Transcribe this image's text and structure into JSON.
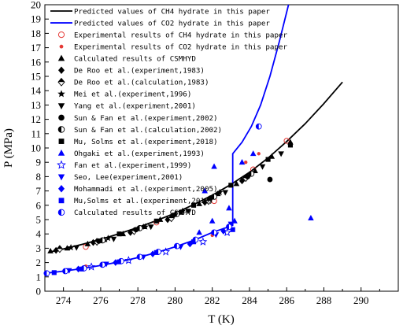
{
  "chart_data": {
    "type": "scatter",
    "xlabel": "T (K)",
    "ylabel": "P (MPa)",
    "xlim": [
      273,
      292
    ],
    "ylim": [
      0,
      20
    ],
    "x_ticks": [
      "274",
      "276",
      "278",
      "280",
      "282",
      "284",
      "286",
      "288",
      "290"
    ],
    "y_ticks": [
      "0",
      "1",
      "2",
      "3",
      "4",
      "5",
      "6",
      "7",
      "8",
      "9",
      "10",
      "11",
      "12",
      "13",
      "14",
      "15",
      "16",
      "17",
      "18",
      "19",
      "20"
    ],
    "grid": false,
    "legend_position": "top-left",
    "colors": {
      "ch4": "#000000",
      "co2": "#0000ff",
      "exp_red": "#e53935"
    },
    "series": [
      {
        "name": "Predicted values of CH$_4$ hydrate in this paper",
        "label": "Predicted values of CH4 hydrate in this paper",
        "marker": "line",
        "color": "#000000",
        "x": [
          273.2,
          274,
          275,
          276,
          277,
          278,
          279,
          280,
          281,
          282,
          283,
          284,
          285,
          286,
          287,
          288,
          289
        ],
        "y": [
          2.72,
          2.95,
          3.27,
          3.62,
          4.02,
          4.45,
          4.93,
          5.45,
          6.05,
          6.7,
          7.45,
          8.3,
          9.3,
          10.45,
          11.7,
          13.1,
          14.6
        ]
      },
      {
        "name": "Predicted values of CO$_2$ hydrate in this paper",
        "label": "Predicted values of CO2 hydrate in this paper",
        "marker": "line",
        "color": "#0000ff",
        "x": [
          273.2,
          274,
          275,
          276,
          277,
          278,
          279,
          280,
          281,
          282,
          283,
          283.1,
          283.1,
          283.6,
          284.1,
          284.6,
          285.1,
          285.6,
          286.1
        ],
        "y": [
          1.28,
          1.4,
          1.58,
          1.8,
          2.05,
          2.35,
          2.7,
          3.1,
          3.55,
          4.1,
          4.55,
          4.6,
          9.6,
          10.4,
          11.5,
          13.0,
          15.0,
          17.4,
          20.0
        ]
      },
      {
        "name": "Experimental results of CH$_4$ hydrate in this paper",
        "label": "Experimental results of CH4 hydrate in this paper",
        "marker": "open-circle",
        "color": "#e53935",
        "x": [
          275.2,
          279.0,
          282.1,
          284.2,
          286.0
        ],
        "y": [
          3.1,
          4.8,
          6.3,
          8.5,
          10.5
        ]
      },
      {
        "name": "Experimental results of CO$_2$ hydrate in this paper",
        "label": "Experimental results of CO2 hydrate in this paper",
        "marker": "dot",
        "color": "#e53935",
        "x": [
          275.2,
          279.1,
          282.0,
          283.8,
          284.5
        ],
        "y": [
          1.75,
          2.7,
          3.9,
          9.0,
          9.6
        ]
      },
      {
        "name": "Calculated results of CSMHYD",
        "label": "Calculated results of CSMHYD",
        "marker": "triangle-up",
        "color": "#000000",
        "x": [
          273.3,
          274.2,
          275.3,
          276.2,
          277.2,
          278.3,
          279.2,
          280.3,
          281.3,
          282.3,
          283.3,
          284.3,
          285.2,
          286.2
        ],
        "y": [
          2.8,
          3.0,
          3.3,
          3.6,
          4.0,
          4.5,
          5.0,
          5.5,
          6.1,
          6.8,
          7.5,
          8.4,
          9.4,
          10.4
        ]
      },
      {
        "name": "De Roo et al.(experiment,1983)",
        "label": "De Roo et al.(experiment,1983)",
        "marker": "diamond",
        "color": "#000000",
        "x": [
          273.6,
          275.6,
          277.6,
          279.6,
          281.6,
          283.6
        ],
        "y": [
          2.85,
          3.4,
          4.1,
          5.0,
          6.2,
          7.7
        ]
      },
      {
        "name": "De Roo et al.(calculation,1983)",
        "label": "De Roo et al.(calculation,1983)",
        "marker": "half-diamond",
        "color": "#000000",
        "x": [
          273.8,
          275.8,
          277.8,
          279.8,
          281.8,
          283.8
        ],
        "y": [
          2.95,
          3.45,
          4.2,
          5.1,
          6.3,
          7.9
        ]
      },
      {
        "name": "Mei et al.(experiment,1996)",
        "label": "Mei et al.(experiment,1996)",
        "marker": "star",
        "color": "#000000",
        "x": [
          274.4,
          276.4,
          278.4,
          280.4,
          282.4
        ],
        "y": [
          3.05,
          3.7,
          4.5,
          5.6,
          6.9
        ]
      },
      {
        "name": "Yang et al.(experiment,2001)",
        "label": "Yang et al.(experiment,2001)",
        "marker": "triangle-down",
        "color": "#000000",
        "x": [
          274.7,
          276.7,
          278.7,
          280.7,
          282.7,
          284.7,
          285.7
        ],
        "y": [
          3.05,
          3.65,
          4.5,
          5.6,
          6.9,
          8.7,
          9.6
        ]
      },
      {
        "name": "Sun & Fan et al.(experiment,2002)",
        "label": "Sun & Fan et al.(experiment,2002)",
        "marker": "circle",
        "color": "#000000",
        "x": [
          275.9,
          277.9,
          279.9,
          281.9,
          283.9,
          285.1
        ],
        "y": [
          3.5,
          4.3,
          5.3,
          6.5,
          8.0,
          7.8
        ]
      },
      {
        "name": "Sun & Fan et al.(calculation,2002)",
        "label": "Sun & Fan et al.(calculation,2002)",
        "marker": "half-circle",
        "color": "#000000",
        "x": [
          276.1,
          278.1,
          280.1,
          282.1,
          284.1
        ],
        "y": [
          3.55,
          4.4,
          5.4,
          6.6,
          8.2
        ]
      },
      {
        "name": "Mu, Solms et al.(experiment,2018)",
        "label": "Mu, Solms et al.(experiment,2018)",
        "marker": "square",
        "color": "#000000",
        "x": [
          277.0,
          279.0,
          281.0,
          283.0,
          285.0,
          286.2
        ],
        "y": [
          4.0,
          4.9,
          6.0,
          7.4,
          9.2,
          10.2
        ]
      },
      {
        "name": "Ohgaki et al.(experiment,1993)",
        "label": "Ohgaki et al.(experiment,1993)",
        "marker": "triangle-up",
        "color": "#0000ff",
        "x": [
          281.3,
          281.6,
          282.0,
          282.1,
          282.9,
          283.2,
          283.6,
          284.2,
          287.3
        ],
        "y": [
          4.1,
          7.0,
          4.9,
          8.7,
          5.8,
          4.9,
          9.0,
          9.6,
          5.1
        ]
      },
      {
        "name": "Fan et al.(experiment,1999)",
        "label": "Fan et al.(experiment,1999)",
        "marker": "open-star",
        "color": "#0000ff",
        "x": [
          275.5,
          277.5,
          279.5,
          281.5,
          282.8
        ],
        "y": [
          1.7,
          2.15,
          2.75,
          3.45,
          4.1
        ]
      },
      {
        "name": "Seo, Lee(experiment,2001)",
        "label": "Seo, Lee(experiment,2001)",
        "marker": "triangle-down",
        "color": "#0000ff",
        "x": [
          274.3,
          276.3,
          278.3,
          280.3,
          282.2,
          283.0
        ],
        "y": [
          1.45,
          1.9,
          2.4,
          3.1,
          3.95,
          4.7
        ]
      },
      {
        "name": "Mohammadi et al.(experiment,2005)",
        "label": "Mohammadi et al.(experiment,2005)",
        "marker": "diamond",
        "color": "#0000ff",
        "x": [
          274.8,
          276.8,
          278.8,
          280.8,
          282.6
        ],
        "y": [
          1.55,
          2.0,
          2.6,
          3.3,
          4.2
        ]
      },
      {
        "name": "Mu,Solms et al.(experiment,2018)",
        "label": "Mu,Solms et al.(experiment,2018)",
        "marker": "square",
        "color": "#0000ff",
        "x": [
          273.5,
          275.0,
          277.0,
          279.0,
          281.0,
          283.1
        ],
        "y": [
          1.3,
          1.55,
          2.05,
          2.7,
          3.45,
          4.3
        ]
      },
      {
        "name": "Calculated results of CSMHYD",
        "label": "Calculated results of CSMHYD",
        "marker": "half-circle",
        "color": "#0000ff",
        "x": [
          273.1,
          274.1,
          275.1,
          276.1,
          277.1,
          278.1,
          279.1,
          280.1,
          281.1,
          282.1,
          282.9,
          284.5
        ],
        "y": [
          1.25,
          1.4,
          1.6,
          1.85,
          2.1,
          2.4,
          2.75,
          3.15,
          3.6,
          4.1,
          4.5,
          11.5
        ]
      }
    ]
  }
}
